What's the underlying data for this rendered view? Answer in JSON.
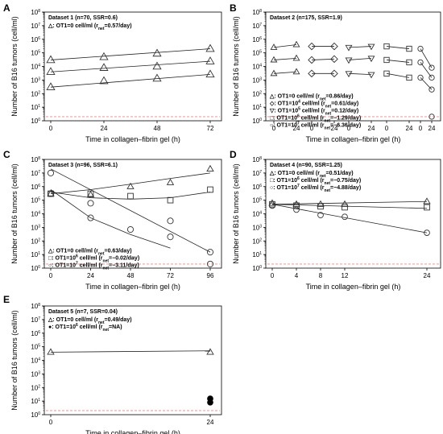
{
  "chart_data": [
    {
      "panel": "A",
      "type": "scatter",
      "title": "Dataset 1 (n=70, SSR=0.6)",
      "xlabel": "Time in collagen–fibrin gel (h)",
      "ylabel": "Number of B16 tumors (cell/ml)",
      "xlim": [
        0,
        72
      ],
      "ylim_log10": [
        0,
        8
      ],
      "x_ticks": [
        "0",
        "24",
        "48",
        "72"
      ],
      "legend": [
        {
          "marker": "triangle",
          "pre": "△: OT1=0 cell/ml (r",
          "sub": "net",
          "post": "=0.57/day)"
        }
      ],
      "series": [
        {
          "marker": "triangle",
          "points": [
            [
              0,
              300
            ],
            [
              24,
              850
            ],
            [
              48,
              1300
            ],
            [
              72,
              2600
            ]
          ],
          "fit": [
            [
              0,
              300
            ],
            [
              72,
              2600
            ]
          ]
        },
        {
          "marker": "triangle",
          "points": [
            [
              0,
              4000
            ],
            [
              24,
              8000
            ],
            [
              48,
              10000
            ],
            [
              72,
              24000
            ]
          ],
          "fit": [
            [
              0,
              4000
            ],
            [
              72,
              24000
            ]
          ]
        },
        {
          "marker": "triangle",
          "points": [
            [
              0,
              30000
            ],
            [
              24,
              50000
            ],
            [
              48,
              90000
            ],
            [
              72,
              200000
            ]
          ],
          "fit": [
            [
              0,
              30000
            ],
            [
              72,
              200000
            ]
          ]
        }
      ]
    },
    {
      "panel": "B",
      "type": "scatter",
      "title": "Dataset 2 (n=175, SSR=1.9)",
      "xlabel": "Time in collagen–fibrin gel (h)",
      "ylabel": "Number of B16 tumors (cell/ml)",
      "ylim_log10": [
        0,
        8
      ],
      "groups": [
        {
          "ticks": [
            "0",
            "24"
          ],
          "marker": "triangle",
          "points": [
            [
              0,
              3000
            ],
            [
              24,
              4000
            ],
            [
              0,
              30000
            ],
            [
              24,
              40000
            ],
            [
              0,
              250000
            ],
            [
              24,
              400000
            ]
          ]
        },
        {
          "ticks": [
            "0",
            "24"
          ],
          "marker": "diamond",
          "points": [
            [
              0,
              3000
            ],
            [
              24,
              3000
            ],
            [
              0,
              30000
            ],
            [
              24,
              35000
            ],
            [
              0,
              300000
            ],
            [
              24,
              300000
            ]
          ]
        },
        {
          "ticks": [
            "0",
            "24"
          ],
          "marker": "inverted-triangle",
          "points": [
            [
              0,
              3000
            ],
            [
              24,
              2500
            ],
            [
              0,
              30000
            ],
            [
              24,
              40000
            ],
            [
              0,
              250000
            ],
            [
              24,
              300000
            ]
          ]
        },
        {
          "ticks": [
            "0",
            "24"
          ],
          "marker": "square",
          "points": [
            [
              0,
              3000
            ],
            [
              24,
              1500
            ],
            [
              0,
              30000
            ],
            [
              24,
              20000
            ],
            [
              0,
              300000
            ],
            [
              24,
              200000
            ]
          ]
        },
        {
          "ticks": [
            "0",
            "24"
          ],
          "marker": "circle",
          "points": [
            [
              0,
              1500
            ],
            [
              24,
              200
            ],
            [
              0,
              20000
            ],
            [
              24,
              1500
            ],
            [
              0,
              200000
            ],
            [
              24,
              8000
            ],
            [
              24,
              2
            ]
          ]
        }
      ],
      "legend": [
        {
          "marker": "triangle",
          "pre": "△: OT1=0 cell/ml (r",
          "sub": "net",
          "post": "=0.86/day)"
        },
        {
          "marker": "diamond",
          "pre": "◇: OT1=10",
          "sup": "4",
          "mid": " cell/ml (r",
          "sub": "net",
          "post": "=0.61/day)"
        },
        {
          "marker": "inverted-triangle",
          "pre": "▽: OT1=10",
          "sup": "5",
          "mid": " cell/ml (r",
          "sub": "net",
          "post": "=0.12/day)"
        },
        {
          "marker": "square",
          "pre": "□: OT1=10",
          "sup": "6",
          "mid": " cell/ml (r",
          "sub": "net",
          "post": "=−1.29/day)"
        },
        {
          "marker": "circle",
          "pre": "○: OT1=10",
          "sup": "7",
          "mid": " cell/ml (r",
          "sub": "net",
          "post": "=−6.36/day)"
        }
      ]
    },
    {
      "panel": "C",
      "type": "scatter",
      "title": "Dataset 3 (n=96, SSR=6.1)",
      "xlabel": "Time in collagen–fibrin gel (h)",
      "ylabel": "Number of B16 tumors (cell/ml)",
      "xlim": [
        0,
        96
      ],
      "ylim_log10": [
        0,
        8
      ],
      "x_ticks": [
        "0",
        "24",
        "48",
        "72",
        "96"
      ],
      "legend": [
        {
          "marker": "triangle",
          "pre": "△: OT1=0 cell/ml (r",
          "sub": "net",
          "post": "=0.63/day)"
        },
        {
          "marker": "square",
          "pre": "□: OT1=10",
          "sup": "6",
          "mid": " cell/ml (r",
          "sub": "net",
          "post": "=−0.02/day)"
        },
        {
          "marker": "circle",
          "pre": "○: OT1=10",
          "sup": "7",
          "mid": " cell/ml (r",
          "sub": "net",
          "post": "=−3.11/day)"
        }
      ],
      "series": [
        {
          "marker": "triangle",
          "points": [
            [
              0,
              300000
            ],
            [
              24,
              250000
            ],
            [
              48,
              1000000
            ],
            [
              72,
              2000000
            ],
            [
              96,
              20000000
            ]
          ],
          "fit": [
            [
              0,
              300000
            ],
            [
              24,
              600000
            ],
            [
              48,
              1500000
            ],
            [
              72,
              4000000
            ],
            [
              96,
              10000000
            ]
          ]
        },
        {
          "marker": "square",
          "points": [
            [
              0,
              300000
            ],
            [
              24,
              300000
            ],
            [
              48,
              200000
            ],
            [
              72,
              100000
            ],
            [
              96,
              600000
            ]
          ],
          "fit": [
            [
              0,
              400000
            ],
            [
              24,
              150000
            ],
            [
              48,
              120000
            ],
            [
              72,
              150000
            ],
            [
              96,
              400000
            ]
          ]
        },
        {
          "marker": "circle",
          "points": [
            [
              0,
              300000
            ],
            [
              24,
              60000
            ],
            [
              48,
              700
            ],
            [
              72,
              200
            ],
            [
              96,
              2
            ]
          ],
          "fit": [
            [
              0,
              20000000
            ],
            [
              96,
              15
            ]
          ]
        },
        {
          "marker": "circle",
          "points": [
            [
              0,
              10000000
            ],
            [
              24,
              5000
            ],
            [
              72,
              3000
            ],
            [
              96,
              15
            ]
          ],
          "fit": [
            [
              0,
              600000
            ],
            [
              24,
              5000
            ],
            [
              48,
              300
            ],
            [
              72,
              30
            ]
          ]
        }
      ]
    },
    {
      "panel": "D",
      "type": "scatter",
      "title": "Dataset 4 (n=90, SSR=1.25)",
      "xlabel": "Time in collagen–fibrin gel (h)",
      "ylabel": "Number of B16 tumors (cell/ml)",
      "xlim": [
        0,
        24
      ],
      "ylim_log10": [
        0,
        8
      ],
      "x_ticks": [
        "0",
        "4",
        "8",
        "12",
        "24"
      ],
      "legend": [
        {
          "marker": "triangle",
          "pre": "△: OT1=0 cell/ml (r",
          "sub": "net",
          "post": "=0.51/day)"
        },
        {
          "marker": "square",
          "pre": "□: OT1=10",
          "sup": "6",
          "mid": " cell/ml (r",
          "sub": "net",
          "post": "=−0.75/day)"
        },
        {
          "marker": "circle",
          "pre": "○: OT1=10",
          "sup": "7",
          "mid": " cell/ml (r",
          "sub": "net",
          "post": "=−4.88/day)"
        }
      ],
      "series": [
        {
          "marker": "triangle",
          "points": [
            [
              0,
              60000
            ],
            [
              4,
              50000
            ],
            [
              8,
              50000
            ],
            [
              12,
              50000
            ],
            [
              24,
              80000
            ]
          ],
          "fit": [
            [
              0,
              50000
            ],
            [
              24,
              80000
            ]
          ]
        },
        {
          "marker": "square",
          "points": [
            [
              0,
              50000
            ],
            [
              4,
              40000
            ],
            [
              8,
              35000
            ],
            [
              12,
              30000
            ],
            [
              24,
              30000
            ]
          ],
          "fit": [
            [
              0,
              50000
            ],
            [
              24,
              25000
            ]
          ]
        },
        {
          "marker": "circle",
          "points": [
            [
              0,
              40000
            ],
            [
              4,
              20000
            ],
            [
              8,
              8000
            ],
            [
              12,
              6000
            ],
            [
              24,
              400
            ]
          ],
          "fit": [
            [
              0,
              50000
            ],
            [
              24,
              400
            ]
          ]
        }
      ]
    },
    {
      "panel": "E",
      "type": "scatter",
      "title": "Dataset 5 (n=7, SSR=0.04)",
      "xlabel": "Time in collagen–fibrin gel (h)",
      "ylabel": "Number of B16 tumors (cell/ml)",
      "xlim": [
        0,
        24
      ],
      "ylim_log10": [
        0,
        8
      ],
      "x_ticks": [
        "0",
        "24"
      ],
      "legend": [
        {
          "marker": "triangle",
          "pre": "△: OT1=0 cell/ml (r",
          "sub": "net",
          "post": "=0.49/day)"
        },
        {
          "marker": "filled-circle",
          "pre": "●: OT1=10",
          "sup": "6",
          "mid": " cell/ml (r",
          "sub": "net",
          "post": "=NA)"
        }
      ],
      "series": [
        {
          "marker": "triangle",
          "points": [
            [
              0,
              40000
            ],
            [
              24,
              40000
            ]
          ],
          "fit": [
            [
              0,
              40000
            ],
            [
              24,
              50000
            ]
          ]
        },
        {
          "marker": "filled-circle",
          "points": [
            [
              24,
              15
            ],
            [
              24,
              8
            ]
          ]
        }
      ]
    }
  ]
}
